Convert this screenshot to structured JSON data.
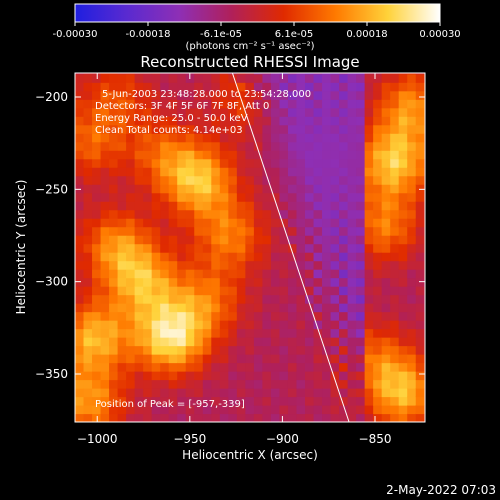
{
  "colorbar": {
    "ticks": [
      "-0.00030",
      "-0.00018",
      "-6.1e-05",
      "6.1e-05",
      "0.00018",
      "0.00030"
    ],
    "unit_label": "(photons cm⁻² s⁻¹ asec⁻²)",
    "stops": [
      "#1f1fe0",
      "#5a2ad0",
      "#8e2fb5",
      "#b0205a",
      "#e02a00",
      "#ff7a00",
      "#ffd23a",
      "#ffffff"
    ]
  },
  "image": {
    "title": "Reconstructed RHESSI Image",
    "info_lines": [
      "5-Jun-2003 23:48:28.000 to 23:54:28.000",
      "Detectors: 3F 4F 5F 6F 7F 8F, Att 0",
      "Energy Range: 25.0 - 50.0 keV",
      "Clean    Total counts: 4.14e+03"
    ],
    "peak_label": "Position of Peak = [-957,-339]",
    "footer_date": "2-May-2022 07:03"
  },
  "chart_data": {
    "type": "heatmap",
    "title": "Reconstructed RHESSI Image",
    "xlabel": "Heliocentric X (arcsec)",
    "ylabel": "Heliocentric Y (arcsec)",
    "xlim": [
      -1012,
      -823
    ],
    "ylim": [
      -376,
      -187
    ],
    "x_ticks": [
      -1000,
      -950,
      -900,
      -850
    ],
    "y_ticks": [
      -350,
      -300,
      -250,
      -200
    ],
    "x_tick_labels": [
      "−1000",
      "−950",
      "−900",
      "−850"
    ],
    "y_tick_labels": [
      "−350",
      "−300",
      "−250",
      "−200"
    ],
    "colorbar_range": [
      -0.0003,
      0.0003
    ],
    "peak": [
      -957,
      -339
    ],
    "limb_line": [
      [
        -927,
        -187
      ],
      [
        -864,
        -376
      ]
    ],
    "hotspots": [
      {
        "x": -1002,
        "y": -330,
        "v": 0.00022
      },
      {
        "x": -990,
        "y": -280,
        "v": 0.00017
      },
      {
        "x": -960,
        "y": -330,
        "v": 0.00028
      },
      {
        "x": -945,
        "y": -245,
        "v": 0.00023
      },
      {
        "x": -928,
        "y": -275,
        "v": 0.00016
      },
      {
        "x": -965,
        "y": -230,
        "v": 0.00012
      },
      {
        "x": -975,
        "y": -300,
        "v": 0.0002
      },
      {
        "x": -940,
        "y": -310,
        "v": 0.00014
      },
      {
        "x": -1005,
        "y": -225,
        "v": 0.00013
      },
      {
        "x": -990,
        "y": -200,
        "v": 0.00011
      },
      {
        "x": -840,
        "y": -235,
        "v": 0.00024
      },
      {
        "x": -830,
        "y": -205,
        "v": 0.00018
      },
      {
        "x": -845,
        "y": -270,
        "v": 0.00016
      },
      {
        "x": -835,
        "y": -360,
        "v": 0.00022
      },
      {
        "x": -850,
        "y": -340,
        "v": 0.00012
      },
      {
        "x": -1005,
        "y": -365,
        "v": 0.00019
      },
      {
        "x": -920,
        "y": -200,
        "v": 0.0001
      }
    ]
  }
}
